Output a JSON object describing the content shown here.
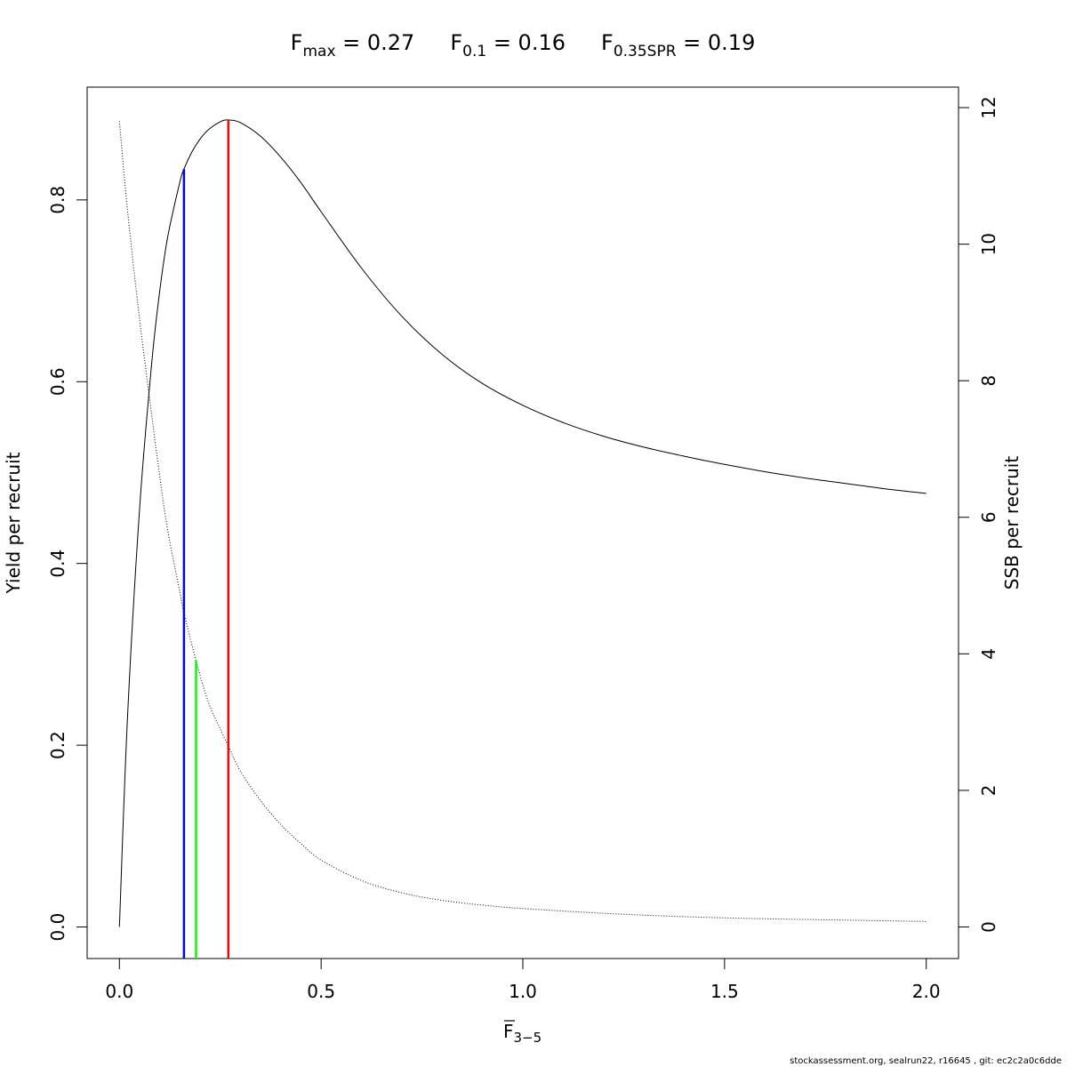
{
  "chart_data": {
    "type": "line",
    "title_parts": [
      {
        "main": "F",
        "sub": "max",
        "value": " = 0.27"
      },
      {
        "main": "F",
        "sub": "0.1",
        "value": " = 0.16"
      },
      {
        "main": "F",
        "sub": "0.35SPR",
        "value": " = 0.19"
      }
    ],
    "xlabel_main": "F",
    "xlabel_sub": "3−5",
    "ylabel_left": "Yield per recruit",
    "ylabel_right": "SSB per recruit",
    "xlim": [
      -0.08,
      2.08
    ],
    "ylim_left": [
      -0.0347,
      0.9241
    ],
    "ylim_right": [
      -0.4626,
      12.3
    ],
    "x_ticks": [
      {
        "value": 0.0,
        "label": "0.0"
      },
      {
        "value": 0.5,
        "label": "0.5"
      },
      {
        "value": 1.0,
        "label": "1.0"
      },
      {
        "value": 1.5,
        "label": "1.5"
      },
      {
        "value": 2.0,
        "label": "2.0"
      }
    ],
    "y_left_ticks": [
      {
        "value": 0.0,
        "label": "0.0"
      },
      {
        "value": 0.2,
        "label": "0.2"
      },
      {
        "value": 0.4,
        "label": "0.4"
      },
      {
        "value": 0.6,
        "label": "0.6"
      },
      {
        "value": 0.8,
        "label": "0.8"
      }
    ],
    "y_right_ticks": [
      {
        "value": 0,
        "label": "0"
      },
      {
        "value": 2,
        "label": "2"
      },
      {
        "value": 4,
        "label": "4"
      },
      {
        "value": 6,
        "label": "6"
      },
      {
        "value": 8,
        "label": "8"
      },
      {
        "value": 10,
        "label": "10"
      },
      {
        "value": 12,
        "label": "12"
      }
    ],
    "series": [
      {
        "axis": "left",
        "style": "solid",
        "color": "#000000",
        "x": [
          0.0,
          0.02,
          0.05,
          0.08,
          0.1,
          0.12,
          0.15,
          0.16,
          0.18,
          0.2,
          0.22,
          0.25,
          0.27,
          0.3,
          0.35,
          0.4,
          0.45,
          0.5,
          0.6,
          0.7,
          0.8,
          0.9,
          1.0,
          1.1,
          1.2,
          1.3,
          1.4,
          1.5,
          1.6,
          1.7,
          1.8,
          1.9,
          2.0
        ],
        "values": [
          0.0,
          0.23,
          0.46,
          0.62,
          0.7,
          0.76,
          0.82,
          0.834,
          0.853,
          0.867,
          0.877,
          0.886,
          0.888,
          0.885,
          0.87,
          0.847,
          0.819,
          0.787,
          0.725,
          0.672,
          0.63,
          0.598,
          0.574,
          0.555,
          0.54,
          0.528,
          0.518,
          0.509,
          0.501,
          0.494,
          0.488,
          0.482,
          0.477
        ]
      },
      {
        "axis": "right",
        "style": "dotted",
        "color": "#000000",
        "x": [
          0.0,
          0.02,
          0.05,
          0.08,
          0.1,
          0.12,
          0.15,
          0.16,
          0.19,
          0.22,
          0.25,
          0.27,
          0.3,
          0.35,
          0.4,
          0.45,
          0.5,
          0.6,
          0.7,
          0.8,
          0.9,
          1.0,
          1.2,
          1.4,
          1.6,
          1.8,
          2.0
        ],
        "values": [
          11.8,
          10.5,
          8.9,
          7.5,
          6.6,
          5.8,
          4.9,
          4.6,
          3.9,
          3.3,
          2.9,
          2.65,
          2.28,
          1.85,
          1.5,
          1.22,
          0.98,
          0.68,
          0.5,
          0.39,
          0.32,
          0.27,
          0.2,
          0.15,
          0.12,
          0.1,
          0.08
        ]
      }
    ],
    "reference_lines": [
      {
        "name": "F0.1",
        "x": 0.16,
        "top": 0.834,
        "axis": "left",
        "color": "#0000ff"
      },
      {
        "name": "F0.35SPR",
        "x": 0.19,
        "top": 3.9,
        "axis": "right",
        "color": "#00ff00"
      },
      {
        "name": "Fmax",
        "x": 0.27,
        "top": 0.888,
        "axis": "left",
        "color": "#ff0000"
      }
    ]
  },
  "footer": "stockassessment.org, sealrun22, r16645 , git: ec2c2a0c6dde"
}
